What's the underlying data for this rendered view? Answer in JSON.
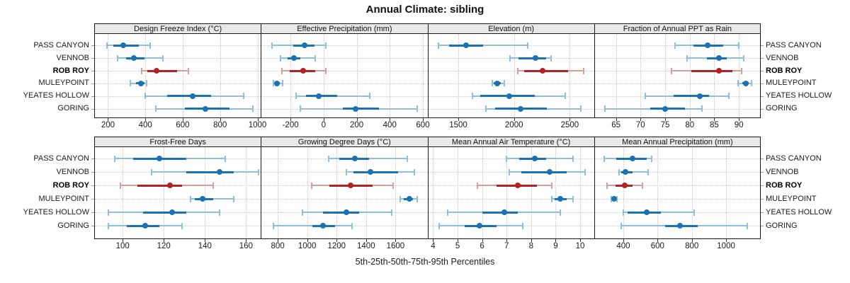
{
  "title": "Annual Climate: sibling",
  "xlabel": "5th-25th-50th-75th-95th Percentiles",
  "percentile_levels": [
    "5th",
    "25th",
    "50th",
    "75th",
    "95th"
  ],
  "sites": [
    {
      "name": "PASS CANYON",
      "highlight": false
    },
    {
      "name": "VENNOB",
      "highlight": false
    },
    {
      "name": "ROB ROY",
      "highlight": true
    },
    {
      "name": "MULEYPOINT",
      "highlight": false
    },
    {
      "name": "YEATES HOLLOW",
      "highlight": false
    },
    {
      "name": "GORING",
      "highlight": false
    }
  ],
  "colors": {
    "normal": "#1a72b2",
    "normal_light": "#8fbfdf",
    "highlight": "#b22222",
    "highlight_light": "#db9c9c",
    "grid": "#c9c9c9",
    "strip_bg": "#e8e8e8"
  },
  "chart_data": [
    {
      "type": "errorbar",
      "title": "Design Freeze Index (°C)",
      "xticks": [
        200,
        400,
        600,
        800,
        1000
      ],
      "xlim": [
        130,
        1018
      ],
      "series": [
        {
          "site": "PASS CANYON",
          "p": [
            195,
            230,
            280,
            365,
            425
          ]
        },
        {
          "site": "VENNOB",
          "p": [
            250,
            295,
            340,
            395,
            495
          ]
        },
        {
          "site": "ROB ROY",
          "p": [
            380,
            410,
            460,
            570,
            630
          ]
        },
        {
          "site": "MULEYPOINT",
          "p": [
            320,
            350,
            375,
            395,
            405
          ]
        },
        {
          "site": "YEATES HOLLOW",
          "p": [
            400,
            515,
            655,
            750,
            925
          ]
        },
        {
          "site": "GORING",
          "p": [
            455,
            610,
            720,
            850,
            975
          ]
        }
      ]
    },
    {
      "type": "errorbar",
      "title": "Effective Precipitation (mm)",
      "xticks": [
        -200,
        0,
        200,
        400,
        600
      ],
      "xlim": [
        -375,
        628
      ],
      "series": [
        {
          "site": "PASS CANYON",
          "p": [
            -310,
            -185,
            -115,
            -55,
            15
          ]
        },
        {
          "site": "VENNOB",
          "p": [
            -260,
            -218,
            -178,
            -140,
            -50
          ]
        },
        {
          "site": "ROB ROY",
          "p": [
            -250,
            -205,
            -125,
            -50,
            15
          ]
        },
        {
          "site": "MULEYPOINT",
          "p": [
            -305,
            -295,
            -280,
            -263,
            -247
          ]
        },
        {
          "site": "YEATES HOLLOW",
          "p": [
            -165,
            -105,
            -30,
            80,
            280
          ]
        },
        {
          "site": "GORING",
          "p": [
            -140,
            115,
            195,
            335,
            565
          ]
        }
      ]
    },
    {
      "type": "errorbar",
      "title": "Elevation (m)",
      "xticks": [
        1500,
        2000,
        2500
      ],
      "xlim": [
        1230,
        2718
      ],
      "series": [
        {
          "site": "PASS CANYON",
          "p": [
            1320,
            1415,
            1570,
            1720,
            2125
          ]
        },
        {
          "site": "VENNOB",
          "p": [
            1965,
            2040,
            2190,
            2285,
            2335
          ]
        },
        {
          "site": "ROB ROY",
          "p": [
            2035,
            2090,
            2255,
            2485,
            2625
          ]
        },
        {
          "site": "MULEYPOINT",
          "p": [
            1805,
            1815,
            1850,
            1880,
            1910
          ]
        },
        {
          "site": "YEATES HOLLOW",
          "p": [
            1625,
            1700,
            1955,
            2185,
            2460
          ]
        },
        {
          "site": "GORING",
          "p": [
            1745,
            1830,
            2060,
            2295,
            2600
          ]
        }
      ]
    },
    {
      "type": "errorbar",
      "title": "Fraction of Annual PPT as Rain",
      "xticks": [
        65,
        70,
        75,
        80,
        85,
        90
      ],
      "xlim": [
        60.7,
        94.3
      ],
      "series": [
        {
          "site": "PASS CANYON",
          "p": [
            77,
            80.7,
            83.7,
            86.8,
            90
          ]
        },
        {
          "site": "VENNOB",
          "p": [
            79.5,
            83.5,
            86,
            87.5,
            91
          ]
        },
        {
          "site": "ROB ROY",
          "p": [
            76.3,
            80.3,
            86,
            88.7,
            90.6
          ]
        },
        {
          "site": "MULEYPOINT",
          "p": [
            89.8,
            90.7,
            91.4,
            92,
            92.6
          ]
        },
        {
          "site": "YEATES HOLLOW",
          "p": [
            71,
            76.7,
            82,
            84,
            88
          ]
        },
        {
          "site": "GORING",
          "p": [
            62.7,
            72,
            75,
            79,
            82.5
          ]
        }
      ]
    },
    {
      "type": "errorbar",
      "title": "Frost-Free Days",
      "xticks": [
        100,
        120,
        140,
        160
      ],
      "xlim": [
        86.5,
        167.2
      ],
      "series": [
        {
          "site": "PASS CANYON",
          "p": [
            96,
            105,
            118,
            131,
            150
          ]
        },
        {
          "site": "VENNOB",
          "p": [
            114,
            131,
            147,
            154,
            166
          ]
        },
        {
          "site": "ROB ROY",
          "p": [
            99,
            107,
            123,
            129,
            144
          ]
        },
        {
          "site": "MULEYPOINT",
          "p": [
            133,
            135,
            139,
            144,
            154
          ]
        },
        {
          "site": "YEATES HOLLOW",
          "p": [
            93,
            110,
            124,
            131,
            147
          ]
        },
        {
          "site": "GORING",
          "p": [
            93,
            102,
            111,
            118,
            129
          ]
        }
      ]
    },
    {
      "type": "errorbar",
      "title": "Growing Degree Days (°C)",
      "xticks": [
        800,
        1000,
        1200,
        1400,
        1600
      ],
      "xlim": [
        690,
        1817
      ],
      "series": [
        {
          "site": "PASS CANYON",
          "p": [
            1145,
            1220,
            1325,
            1420,
            1680
          ]
        },
        {
          "site": "VENNOB",
          "p": [
            1265,
            1315,
            1430,
            1615,
            1730
          ]
        },
        {
          "site": "ROB ROY",
          "p": [
            1030,
            1150,
            1295,
            1445,
            1585
          ]
        },
        {
          "site": "MULEYPOINT",
          "p": [
            1630,
            1655,
            1695,
            1720,
            1745
          ]
        },
        {
          "site": "YEATES HOLLOW",
          "p": [
            970,
            1105,
            1265,
            1355,
            1575
          ]
        },
        {
          "site": "GORING",
          "p": [
            770,
            1035,
            1105,
            1190,
            1305
          ]
        }
      ]
    },
    {
      "type": "errorbar",
      "title": "Mean Annual Air Temperature (°C)",
      "xticks": [
        4,
        5,
        6,
        7,
        8,
        9,
        10
      ],
      "xlim": [
        3.8,
        10.57
      ],
      "series": [
        {
          "site": "PASS CANYON",
          "p": [
            7.0,
            7.5,
            8.15,
            8.6,
            9.7
          ]
        },
        {
          "site": "VENNOB",
          "p": [
            7.1,
            7.6,
            8.75,
            9.45,
            10.2
          ]
        },
        {
          "site": "ROB ROY",
          "p": [
            5.8,
            6.6,
            7.45,
            8.25,
            8.85
          ]
        },
        {
          "site": "MULEYPOINT",
          "p": [
            8.85,
            8.95,
            9.2,
            9.45,
            9.7
          ]
        },
        {
          "site": "YEATES HOLLOW",
          "p": [
            4.6,
            6.0,
            6.9,
            7.45,
            9.2
          ]
        },
        {
          "site": "GORING",
          "p": [
            4.25,
            5.3,
            5.9,
            6.6,
            7.65
          ]
        }
      ]
    },
    {
      "type": "errorbar",
      "title": "Mean Annual Precipitation (mm)",
      "xticks": [
        400,
        600,
        800,
        1000
      ],
      "xlim": [
        234,
        1198
      ],
      "series": [
        {
          "site": "PASS CANYON",
          "p": [
            287,
            360,
            455,
            535,
            565
          ]
        },
        {
          "site": "VENNOB",
          "p": [
            375,
            390,
            413,
            455,
            545
          ]
        },
        {
          "site": "ROB ROY",
          "p": [
            305,
            355,
            410,
            455,
            510
          ]
        },
        {
          "site": "MULEYPOINT",
          "p": [
            332,
            338,
            345,
            353,
            362
          ]
        },
        {
          "site": "YEATES HOLLOW",
          "p": [
            400,
            425,
            538,
            620,
            815
          ]
        },
        {
          "site": "GORING",
          "p": [
            390,
            645,
            730,
            835,
            1125
          ]
        }
      ]
    }
  ]
}
